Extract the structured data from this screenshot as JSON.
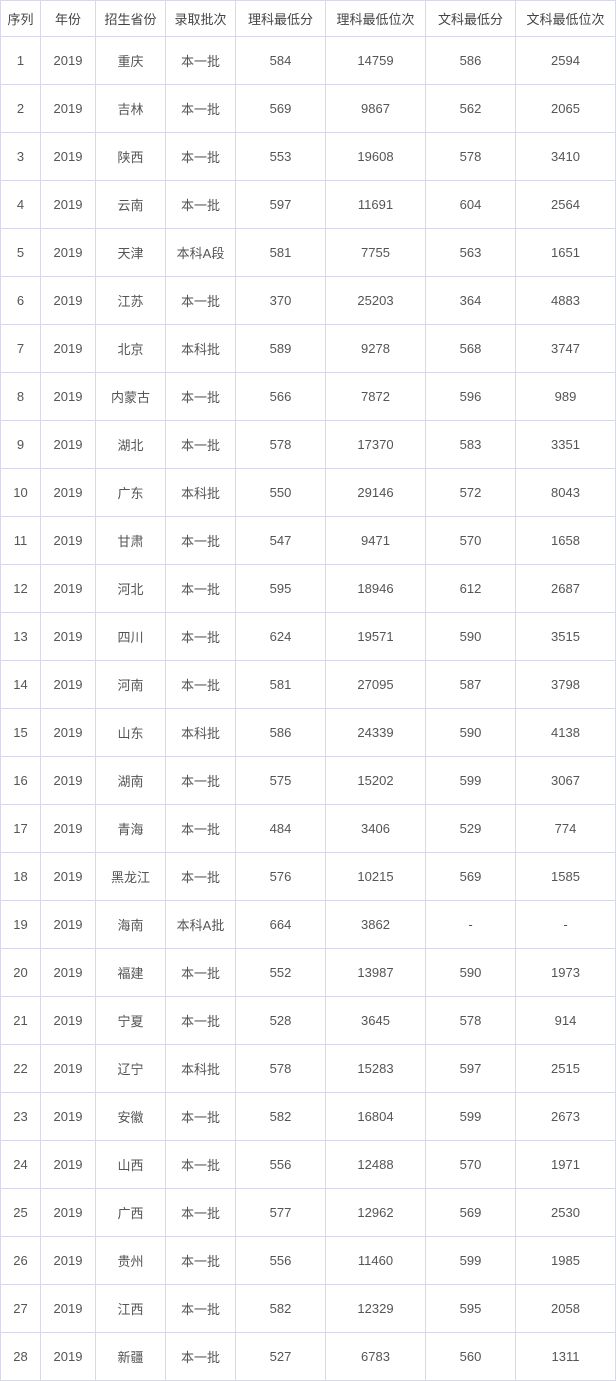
{
  "table": {
    "columns": [
      "序列",
      "年份",
      "招生省份",
      "录取批次",
      "理科最低分",
      "理科最低位次",
      "文科最低分",
      "文科最低位次"
    ],
    "col_classes": [
      "col-idx",
      "col-year",
      "col-prov",
      "col-batch",
      "col-sci-score",
      "col-sci-rank",
      "col-art-score",
      "col-art-rank"
    ],
    "rows": [
      [
        "1",
        "2019",
        "重庆",
        "本一批",
        "584",
        "14759",
        "586",
        "2594"
      ],
      [
        "2",
        "2019",
        "吉林",
        "本一批",
        "569",
        "9867",
        "562",
        "2065"
      ],
      [
        "3",
        "2019",
        "陕西",
        "本一批",
        "553",
        "19608",
        "578",
        "3410"
      ],
      [
        "4",
        "2019",
        "云南",
        "本一批",
        "597",
        "11691",
        "604",
        "2564"
      ],
      [
        "5",
        "2019",
        "天津",
        "本科A段",
        "581",
        "7755",
        "563",
        "1651"
      ],
      [
        "6",
        "2019",
        "江苏",
        "本一批",
        "370",
        "25203",
        "364",
        "4883"
      ],
      [
        "7",
        "2019",
        "北京",
        "本科批",
        "589",
        "9278",
        "568",
        "3747"
      ],
      [
        "8",
        "2019",
        "内蒙古",
        "本一批",
        "566",
        "7872",
        "596",
        "989"
      ],
      [
        "9",
        "2019",
        "湖北",
        "本一批",
        "578",
        "17370",
        "583",
        "3351"
      ],
      [
        "10",
        "2019",
        "广东",
        "本科批",
        "550",
        "29146",
        "572",
        "8043"
      ],
      [
        "11",
        "2019",
        "甘肃",
        "本一批",
        "547",
        "9471",
        "570",
        "1658"
      ],
      [
        "12",
        "2019",
        "河北",
        "本一批",
        "595",
        "18946",
        "612",
        "2687"
      ],
      [
        "13",
        "2019",
        "四川",
        "本一批",
        "624",
        "19571",
        "590",
        "3515"
      ],
      [
        "14",
        "2019",
        "河南",
        "本一批",
        "581",
        "27095",
        "587",
        "3798"
      ],
      [
        "15",
        "2019",
        "山东",
        "本科批",
        "586",
        "24339",
        "590",
        "4138"
      ],
      [
        "16",
        "2019",
        "湖南",
        "本一批",
        "575",
        "15202",
        "599",
        "3067"
      ],
      [
        "17",
        "2019",
        "青海",
        "本一批",
        "484",
        "3406",
        "529",
        "774"
      ],
      [
        "18",
        "2019",
        "黑龙江",
        "本一批",
        "576",
        "10215",
        "569",
        "1585"
      ],
      [
        "19",
        "2019",
        "海南",
        "本科A批",
        "664",
        "3862",
        "-",
        "-"
      ],
      [
        "20",
        "2019",
        "福建",
        "本一批",
        "552",
        "13987",
        "590",
        "1973"
      ],
      [
        "21",
        "2019",
        "宁夏",
        "本一批",
        "528",
        "3645",
        "578",
        "914"
      ],
      [
        "22",
        "2019",
        "辽宁",
        "本科批",
        "578",
        "15283",
        "597",
        "2515"
      ],
      [
        "23",
        "2019",
        "安徽",
        "本一批",
        "582",
        "16804",
        "599",
        "2673"
      ],
      [
        "24",
        "2019",
        "山西",
        "本一批",
        "556",
        "12488",
        "570",
        "1971"
      ],
      [
        "25",
        "2019",
        "广西",
        "本一批",
        "577",
        "12962",
        "569",
        "2530"
      ],
      [
        "26",
        "2019",
        "贵州",
        "本一批",
        "556",
        "11460",
        "599",
        "1985"
      ],
      [
        "27",
        "2019",
        "江西",
        "本一批",
        "582",
        "12329",
        "595",
        "2058"
      ],
      [
        "28",
        "2019",
        "新疆",
        "本一批",
        "527",
        "6783",
        "560",
        "1311"
      ]
    ],
    "border_color": "#d8d8e8",
    "text_color": "#555",
    "font_size": 13,
    "background_color": "#ffffff"
  }
}
